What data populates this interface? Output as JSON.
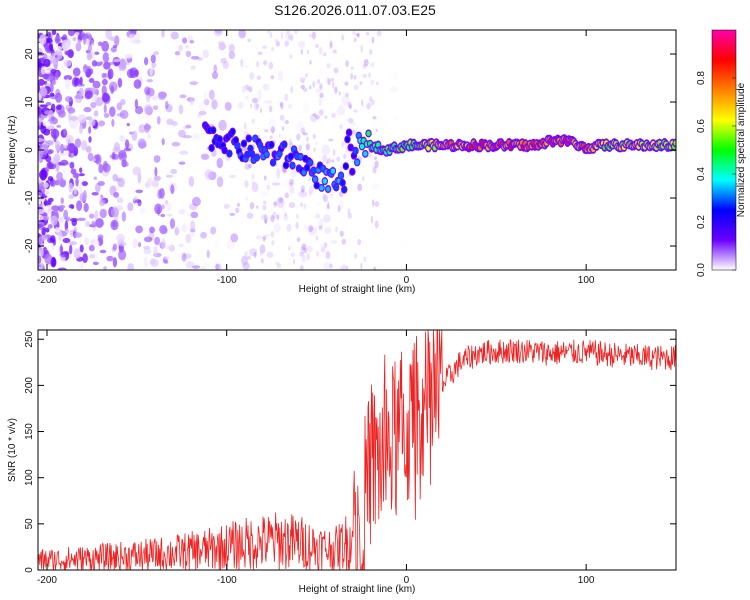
{
  "title": "S126.2026.011.07.03.E25",
  "chart_data": [
    {
      "type": "heatmap",
      "name": "spectrogram",
      "xlabel": "Height of straight line (km)",
      "ylabel": "Frequency (Hz)",
      "xlim": [
        -205,
        150
      ],
      "ylim": [
        -25,
        25
      ],
      "xticks": [
        -200,
        -100,
        0,
        100
      ],
      "yticks": [
        -20,
        -10,
        0,
        10,
        20
      ],
      "colorbar": {
        "label": "Normalized spectral amplitude",
        "range": [
          0,
          1
        ],
        "ticks": [
          0.0,
          0.2,
          0.4,
          0.6,
          0.8
        ],
        "colors": [
          "#ffffff",
          "#6a00ff",
          "#0000ff",
          "#00ffff",
          "#00ff00",
          "#ffff00",
          "#ff8000",
          "#ff0000",
          "#ff00aa"
        ]
      },
      "signal_track": {
        "x": [
          -110,
          -100,
          -90,
          -80,
          -70,
          -60,
          -50,
          -45,
          -40,
          -35,
          -32,
          -30,
          -25,
          -20,
          -10,
          0,
          10,
          20,
          40,
          60,
          75,
          80,
          90,
          95,
          100,
          110,
          120,
          150
        ],
        "freq": [
          3,
          2,
          0,
          0,
          -1,
          -2,
          -5,
          -6,
          -7,
          -8,
          3,
          -3,
          2,
          1,
          0,
          1,
          1,
          1,
          1,
          1,
          1,
          2,
          2,
          1,
          0.5,
          1,
          1,
          1
        ],
        "amplitude": [
          0.25,
          0.25,
          0.3,
          0.3,
          0.3,
          0.3,
          0.3,
          0.35,
          0.35,
          0.3,
          0.2,
          0.2,
          0.4,
          0.45,
          0.5,
          0.55,
          0.6,
          0.7,
          0.85,
          0.85,
          0.85,
          0.9,
          0.85,
          0.8,
          0.85,
          0.6,
          0.65,
          0.6
        ]
      }
    },
    {
      "type": "line",
      "name": "snr",
      "xlabel": "Height of straight line (km)",
      "ylabel": "SNR (10 * v/v)",
      "xlim": [
        -205,
        150
      ],
      "ylim": [
        0,
        260
      ],
      "xticks": [
        -200,
        -100,
        0,
        100
      ],
      "yticks": [
        0,
        50,
        100,
        150,
        200,
        250
      ],
      "color": "#ee2222",
      "envelope": {
        "x": [
          -205,
          -180,
          -150,
          -130,
          -110,
          -100,
          -90,
          -80,
          -70,
          -60,
          -50,
          -40,
          -30,
          -25,
          -20,
          -15,
          -10,
          0,
          10,
          20,
          30,
          40,
          60,
          80,
          100,
          120,
          140,
          150
        ],
        "mean": [
          10,
          12,
          15,
          18,
          22,
          25,
          28,
          30,
          32,
          30,
          25,
          22,
          35,
          60,
          110,
          120,
          130,
          150,
          170,
          200,
          225,
          235,
          238,
          235,
          236,
          232,
          230,
          230
        ]
      }
    }
  ]
}
